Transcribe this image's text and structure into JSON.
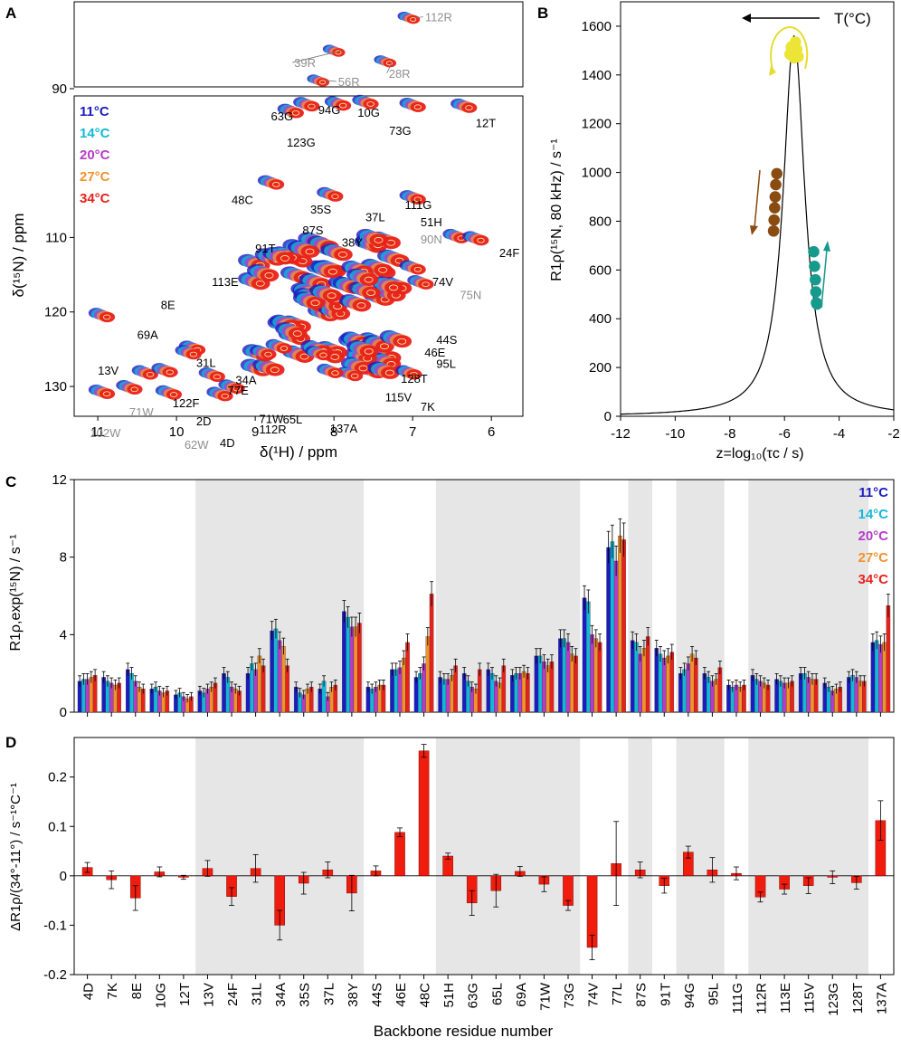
{
  "panel_labels": {
    "a": "A",
    "b": "B",
    "c": "C",
    "d": "D"
  },
  "temperatures": [
    {
      "label": "11°C",
      "color": "#1c1cc0"
    },
    {
      "label": "14°C",
      "color": "#12b8d8"
    },
    {
      "label": "20°C",
      "color": "#b63cc8"
    },
    {
      "label": "27°C",
      "color": "#f2922a"
    },
    {
      "label": "34°C",
      "color": "#e8211b"
    }
  ],
  "residues": [
    "4D",
    "7K",
    "8E",
    "10G",
    "12T",
    "13V",
    "24F",
    "31L",
    "34A",
    "35S",
    "37L",
    "38Y",
    "44S",
    "46E",
    "48C",
    "51H",
    "63G",
    "65L",
    "69A",
    "71W",
    "73G",
    "74V",
    "77L",
    "87S",
    "91T",
    "94G",
    "95L",
    "111G",
    "112R",
    "113E",
    "115V",
    "123G",
    "128T",
    "137A"
  ],
  "chart_data": [
    {
      "id": "A",
      "type": "scatter",
      "title": "",
      "xlabel": "δ(¹H) / ppm",
      "ylabel": "δ(¹⁵N) / ppm",
      "xlim": [
        11.3,
        5.6
      ],
      "ylim_main": [
        134,
        91
      ],
      "ylim_inset": [
        89.5,
        81.5
      ],
      "xticks": [
        11,
        10,
        9,
        8,
        7,
        6
      ],
      "yticks": [
        110,
        120,
        130
      ],
      "yticks_inset": [
        90
      ],
      "peak_labels": [
        {
          "label": "112R",
          "h": 7.3,
          "n": 83.2,
          "ref": true,
          "inset": true
        },
        {
          "label": "39R",
          "h": 7.9,
          "n": 85.8,
          "ref": true,
          "inset": true
        },
        {
          "label": "28R",
          "h": 7.3,
          "n": 86.8,
          "ref": true,
          "inset": true
        },
        {
          "label": "56R",
          "h": 8.1,
          "n": 88.8,
          "ref": true,
          "inset": true
        },
        {
          "label": "63G",
          "h": 8.8,
          "n": 94.3,
          "ref": false
        },
        {
          "label": "94G",
          "h": 8.2,
          "n": 93.4,
          "ref": false
        },
        {
          "label": "10G",
          "h": 7.7,
          "n": 93.8,
          "ref": false
        },
        {
          "label": "73G",
          "h": 7.3,
          "n": 96.2,
          "ref": false
        },
        {
          "label": "123G",
          "h": 8.6,
          "n": 97.8,
          "ref": false
        },
        {
          "label": "12T",
          "h": 6.2,
          "n": 95.2,
          "ref": false
        },
        {
          "label": "48C",
          "h": 9.3,
          "n": 105.5,
          "ref": false
        },
        {
          "label": "35S",
          "h": 8.3,
          "n": 106.8,
          "ref": false
        },
        {
          "label": "37L",
          "h": 7.6,
          "n": 107.8,
          "ref": false
        },
        {
          "label": "111G",
          "h": 7.1,
          "n": 106.2,
          "ref": false
        },
        {
          "label": "51H",
          "h": 6.9,
          "n": 108.5,
          "ref": false
        },
        {
          "label": "87S",
          "h": 8.4,
          "n": 109.6,
          "ref": false
        },
        {
          "label": "38Y",
          "h": 7.9,
          "n": 111.2,
          "ref": false
        },
        {
          "label": "91T",
          "h": 9.0,
          "n": 112.0,
          "ref": false
        },
        {
          "label": "90N",
          "h": 6.9,
          "n": 110.8,
          "ref": true
        },
        {
          "label": "24F",
          "h": 5.9,
          "n": 112.6,
          "ref": false
        },
        {
          "label": "113E",
          "h": 9.55,
          "n": 116.5,
          "ref": false
        },
        {
          "label": "74V",
          "h": 6.75,
          "n": 116.5,
          "ref": false
        },
        {
          "label": "75N",
          "h": 6.4,
          "n": 118.3,
          "ref": true
        },
        {
          "label": "8E",
          "h": 10.2,
          "n": 119.6,
          "ref": false
        },
        {
          "label": "69A",
          "h": 10.5,
          "n": 123.6,
          "ref": false
        },
        {
          "label": "44S",
          "h": 6.7,
          "n": 124.3,
          "ref": false
        },
        {
          "label": "46E",
          "h": 6.85,
          "n": 126.0,
          "ref": false
        },
        {
          "label": "31L",
          "h": 9.75,
          "n": 127.4,
          "ref": false
        },
        {
          "label": "95L",
          "h": 6.7,
          "n": 127.5,
          "ref": false
        },
        {
          "label": "13V",
          "h": 11.0,
          "n": 128.4,
          "ref": false
        },
        {
          "label": "34A",
          "h": 9.25,
          "n": 129.7,
          "ref": false
        },
        {
          "label": "128T",
          "h": 7.15,
          "n": 129.5,
          "ref": false
        },
        {
          "label": "77E",
          "h": 9.35,
          "n": 131.1,
          "ref": false
        },
        {
          "label": "115V",
          "h": 7.35,
          "n": 132.0,
          "ref": false
        },
        {
          "label": "122F",
          "h": 10.05,
          "n": 132.8,
          "ref": false
        },
        {
          "label": "7K",
          "h": 6.9,
          "n": 133.3,
          "ref": false
        },
        {
          "label": "71W",
          "h": 8.95,
          "n": 134.9,
          "ref": false
        },
        {
          "label": "65L",
          "h": 8.65,
          "n": 135.0,
          "ref": false
        },
        {
          "label": "2D",
          "h": 9.75,
          "n": 135.2,
          "ref": false
        },
        {
          "label": "71W",
          "h": 10.6,
          "n": 134.0,
          "ref": true
        },
        {
          "label": "112R",
          "h": 8.95,
          "n": 136.3,
          "ref": false
        },
        {
          "label": "137A",
          "h": 8.05,
          "n": 136.2,
          "ref": false
        },
        {
          "label": "102W",
          "h": 11.1,
          "n": 136.8,
          "ref": true
        },
        {
          "label": "62W",
          "h": 9.9,
          "n": 138.4,
          "ref": true
        },
        {
          "label": "4D",
          "h": 9.45,
          "n": 138.1,
          "ref": false
        }
      ]
    },
    {
      "id": "B",
      "type": "line",
      "title": "",
      "xlabel": "z=log₁₀(τc / s)",
      "ylabel": "R1ρ(¹⁵N, 80 kHz) / s⁻¹",
      "xlim": [
        -12,
        -2
      ],
      "ylim": [
        0,
        1700
      ],
      "xticks": [
        -12,
        -10,
        -8,
        -6,
        -4,
        -2
      ],
      "yticks": [
        0,
        200,
        400,
        600,
        800,
        1000,
        1200,
        1400,
        1600
      ],
      "annotation": "T(°C)",
      "curve": {
        "peak_z": -5.65,
        "peak_value": 1560,
        "half_width_z": 0.48
      },
      "point_groups": [
        {
          "name": "yellow",
          "color": "#ece436",
          "z": [
            -5.6,
            -5.75,
            -5.55,
            -5.8,
            -5.5,
            -5.65
          ],
          "values": [
            1535,
            1515,
            1505,
            1485,
            1475,
            1470
          ]
        },
        {
          "name": "brown",
          "color": "#8a4b10",
          "z": [
            -6.28,
            -6.32,
            -6.34,
            -6.36,
            -6.38,
            -6.4
          ],
          "values": [
            995,
            950,
            900,
            855,
            805,
            760
          ]
        },
        {
          "name": "teal",
          "color": "#169a8c",
          "z": [
            -4.93,
            -4.9,
            -4.87,
            -4.85,
            -4.83,
            -4.81
          ],
          "values": [
            675,
            615,
            560,
            510,
            465,
            460
          ]
        }
      ]
    },
    {
      "id": "C",
      "type": "bar",
      "title": "",
      "xlabel": "",
      "ylabel": "R1ρ,exp(¹⁵N) / s⁻¹",
      "ylim": [
        0,
        12
      ],
      "yticks": [
        0,
        4,
        8,
        12
      ],
      "series": [
        {
          "name": "11°C",
          "values": [
            1.6,
            1.8,
            2.2,
            1.2,
            0.9,
            1.1,
            2.0,
            2.0,
            4.2,
            1.3,
            1.2,
            5.2,
            1.3,
            2.2,
            1.8,
            1.8,
            2.0,
            2.2,
            1.9,
            2.9,
            3.8,
            5.9,
            8.5,
            3.7,
            3.3,
            2.0,
            2.0,
            1.4,
            1.9,
            1.7,
            2.0,
            1.5,
            1.8,
            3.6
          ]
        },
        {
          "name": "14°C",
          "values": [
            1.7,
            1.6,
            2.0,
            1.3,
            1.0,
            1.0,
            1.8,
            2.5,
            4.3,
            1.0,
            1.6,
            4.9,
            1.2,
            2.2,
            2.0,
            1.7,
            1.6,
            2.0,
            2.0,
            2.9,
            3.8,
            5.7,
            8.8,
            3.6,
            3.0,
            2.2,
            1.8,
            1.3,
            1.7,
            1.6,
            2.0,
            1.3,
            1.9,
            3.7
          ]
        },
        {
          "name": "20°C",
          "values": [
            1.7,
            1.5,
            1.6,
            1.1,
            0.8,
            1.2,
            1.3,
            2.2,
            3.7,
            0.9,
            0.8,
            4.4,
            1.3,
            2.3,
            2.5,
            1.7,
            1.3,
            1.6,
            2.0,
            2.6,
            3.6,
            4.0,
            7.8,
            3.0,
            2.8,
            2.5,
            1.6,
            1.4,
            1.6,
            1.5,
            1.8,
            1.1,
            1.8,
            3.5
          ]
        },
        {
          "name": "27°C",
          "values": [
            1.8,
            1.4,
            1.3,
            1.0,
            0.7,
            1.3,
            1.2,
            2.9,
            3.4,
            1.2,
            1.3,
            4.4,
            1.4,
            2.8,
            3.9,
            1.9,
            1.2,
            1.5,
            2.1,
            2.4,
            3.0,
            3.8,
            9.1,
            3.3,
            2.9,
            3.0,
            1.7,
            1.3,
            1.5,
            1.5,
            1.7,
            1.2,
            1.6,
            3.6
          ]
        },
        {
          "name": "34°C",
          "values": [
            1.9,
            1.5,
            1.2,
            1.1,
            0.8,
            1.5,
            1.1,
            2.4,
            2.4,
            1.3,
            1.4,
            4.6,
            1.4,
            3.6,
            6.1,
            2.4,
            2.2,
            2.4,
            2.0,
            2.6,
            2.9,
            3.6,
            8.9,
            3.9,
            3.1,
            2.8,
            2.3,
            1.4,
            1.4,
            1.6,
            1.7,
            1.3,
            1.6,
            5.5
          ]
        }
      ],
      "shaded_residues": [
        "13V",
        "24F",
        "31L",
        "34A",
        "35S",
        "37L",
        "38Y",
        "51H",
        "63G",
        "65L",
        "69A",
        "71W",
        "73G",
        "87S",
        "94G",
        "95L",
        "112R",
        "113E",
        "115V",
        "123G",
        "128T"
      ]
    },
    {
      "id": "D",
      "type": "bar",
      "title": "",
      "xlabel": "Backbone residue number",
      "ylabel": "ΔR1ρ/(34°-11°) / s⁻¹°C⁻¹",
      "ylim": [
        -0.2,
        0.28
      ],
      "yticks": [
        -0.2,
        -0.1,
        0.0,
        0.1,
        0.2
      ],
      "values": [
        0.017,
        -0.008,
        -0.045,
        0.008,
        -0.003,
        0.015,
        -0.042,
        0.015,
        -0.1,
        -0.015,
        0.012,
        -0.035,
        0.01,
        0.088,
        0.253,
        0.04,
        -0.055,
        -0.03,
        0.009,
        -0.017,
        -0.06,
        -0.145,
        0.025,
        0.012,
        -0.02,
        0.048,
        0.012,
        0.005,
        -0.043,
        -0.027,
        -0.02,
        -0.003,
        -0.014,
        0.112
      ],
      "errors": [
        0.01,
        0.018,
        0.025,
        0.01,
        0.004,
        0.016,
        0.018,
        0.028,
        0.03,
        0.022,
        0.016,
        0.036,
        0.01,
        0.009,
        0.013,
        0.006,
        0.025,
        0.033,
        0.01,
        0.015,
        0.01,
        0.025,
        0.085,
        0.016,
        0.015,
        0.012,
        0.025,
        0.013,
        0.01,
        0.01,
        0.016,
        0.013,
        0.013,
        0.04
      ],
      "color": "#f01c0e"
    }
  ]
}
